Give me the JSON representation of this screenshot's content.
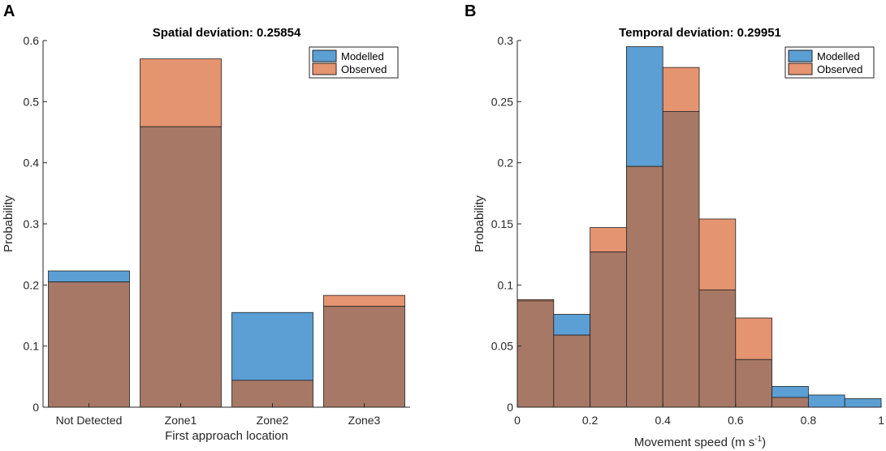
{
  "panels": {
    "A": {
      "letter": "A"
    },
    "B": {
      "letter": "B"
    }
  },
  "colors": {
    "modelled": "#5b9fd4",
    "observed": "#e59470",
    "overlap": "#a77865",
    "edge": "#222222",
    "axis": "#262626"
  },
  "chart_data": [
    {
      "type": "bar",
      "title": "Spatial deviation: 0.25854",
      "xlabel": "First approach location",
      "ylabel": "Probability",
      "categories": [
        "Not Detected",
        "Zone1",
        "Zone2",
        "Zone3"
      ],
      "series": [
        {
          "name": "Modelled",
          "values": [
            0.223,
            0.459,
            0.155,
            0.165
          ]
        },
        {
          "name": "Observed",
          "values": [
            0.205,
            0.57,
            0.044,
            0.183
          ]
        }
      ],
      "ylim": [
        0,
        0.6
      ],
      "yticks": [
        0,
        0.1,
        0.2,
        0.3,
        0.4,
        0.5,
        0.6
      ],
      "ytick_labels": [
        "0",
        "0.1",
        "0.2",
        "0.3",
        "0.4",
        "0.5",
        "0.6"
      ],
      "legend": {
        "position": "top-right",
        "entries": [
          "Modelled",
          "Observed"
        ]
      }
    },
    {
      "type": "bar",
      "subtype": "histogram",
      "title": "Temporal deviation: 0.29951",
      "xlabel": "Movement speed (m s",
      "xlabel_superscript": "-1",
      "xlabel_suffix": ")",
      "ylabel": "Probability",
      "bin_edges": [
        0,
        0.1,
        0.2,
        0.3,
        0.4,
        0.5,
        0.6,
        0.7,
        0.8,
        0.9,
        1.0
      ],
      "series": [
        {
          "name": "Modelled",
          "values": [
            0.087,
            0.076,
            0.127,
            0.295,
            0.242,
            0.096,
            0.039,
            0.017,
            0.01,
            0.007
          ]
        },
        {
          "name": "Observed",
          "values": [
            0.088,
            0.059,
            0.147,
            0.197,
            0.278,
            0.154,
            0.073,
            0.008,
            0.0,
            0.0
          ]
        }
      ],
      "xlim": [
        0,
        1
      ],
      "xticks": [
        0,
        0.2,
        0.4,
        0.6,
        0.8,
        1
      ],
      "xtick_labels": [
        "0",
        "0.2",
        "0.4",
        "0.6",
        "0.8",
        "1"
      ],
      "ylim": [
        0,
        0.3
      ],
      "yticks": [
        0,
        0.05,
        0.1,
        0.15,
        0.2,
        0.25,
        0.3
      ],
      "ytick_labels": [
        "0",
        "0.05",
        "0.1",
        "0.15",
        "0.2",
        "0.25",
        "0.3"
      ],
      "legend": {
        "position": "top-right",
        "entries": [
          "Modelled",
          "Observed"
        ]
      }
    }
  ]
}
